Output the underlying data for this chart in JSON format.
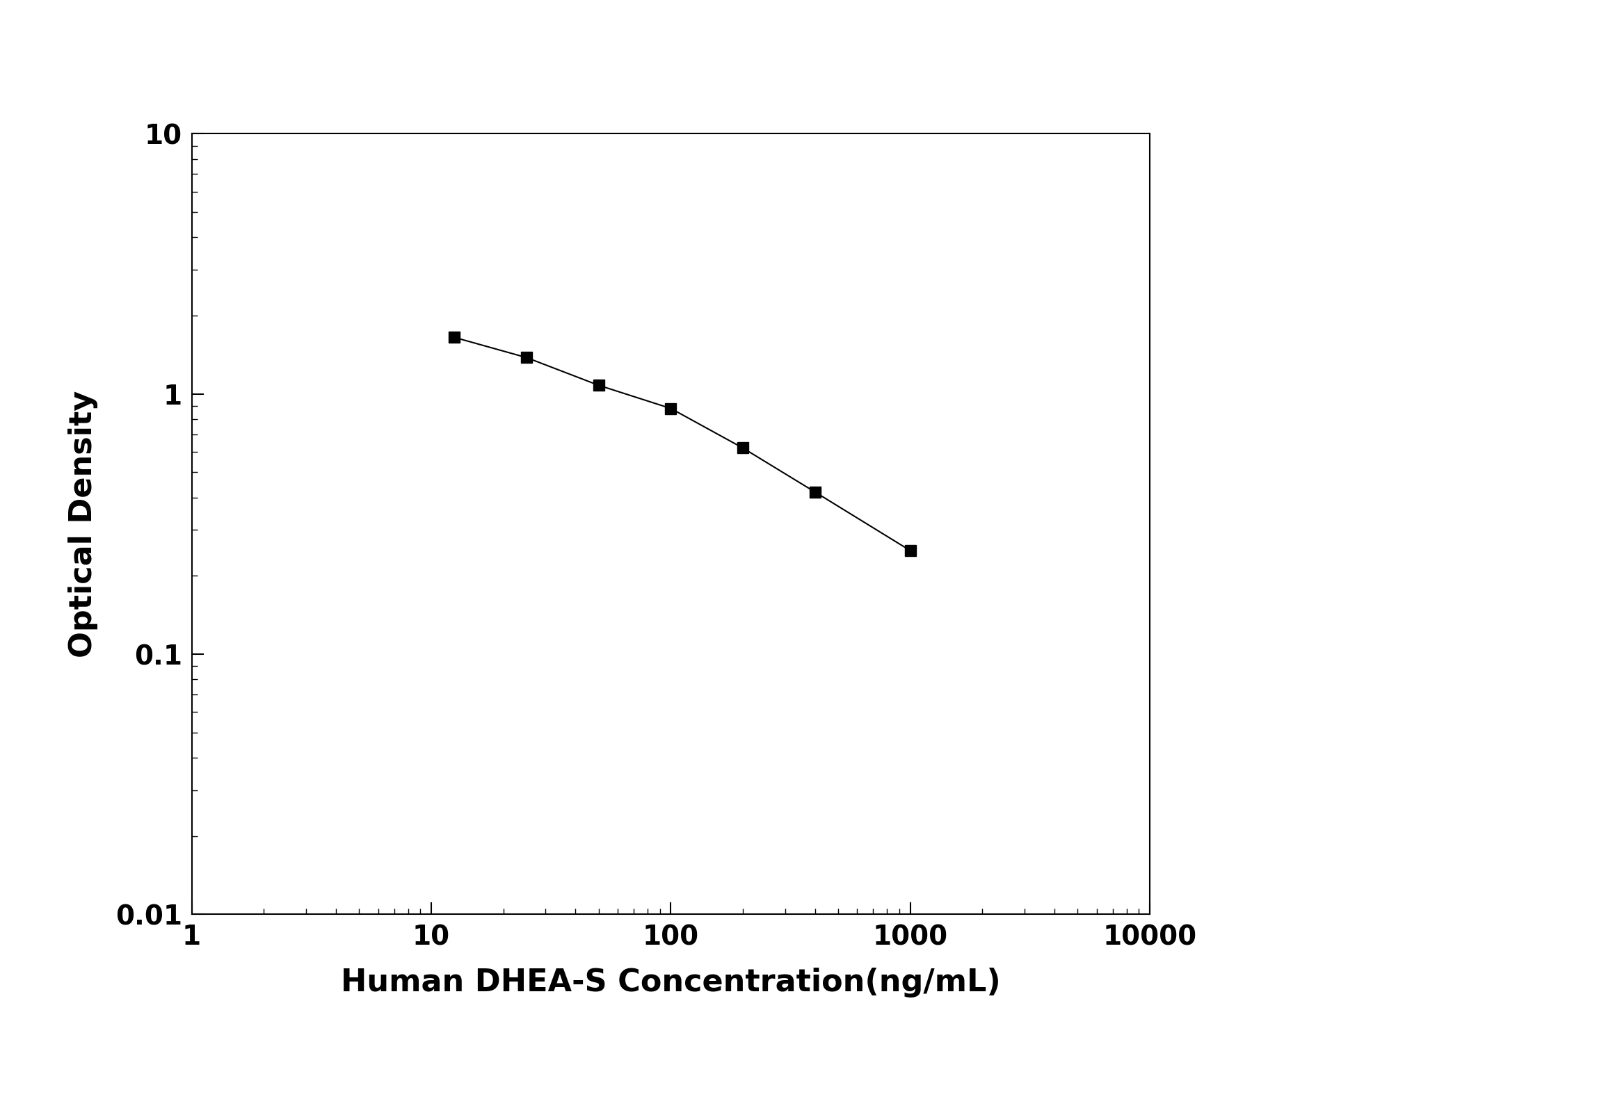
{
  "x": [
    12.5,
    25,
    50,
    100,
    200,
    400,
    1000
  ],
  "y": [
    1.65,
    1.38,
    1.08,
    0.88,
    0.62,
    0.42,
    0.25
  ],
  "xlabel": "Human DHEA-S Concentration(ng/mL)",
  "ylabel": "Optical Density",
  "xlim": [
    1,
    10000
  ],
  "ylim": [
    0.01,
    10
  ],
  "line_color": "#000000",
  "marker": "s",
  "marker_size": 11,
  "marker_color": "#000000",
  "line_width": 1.5,
  "xlabel_fontsize": 32,
  "ylabel_fontsize": 32,
  "tick_fontsize": 28,
  "background_color": "#ffffff",
  "xticks": [
    1,
    10,
    100,
    1000,
    10000
  ],
  "yticks": [
    0.01,
    0.1,
    1,
    10
  ]
}
